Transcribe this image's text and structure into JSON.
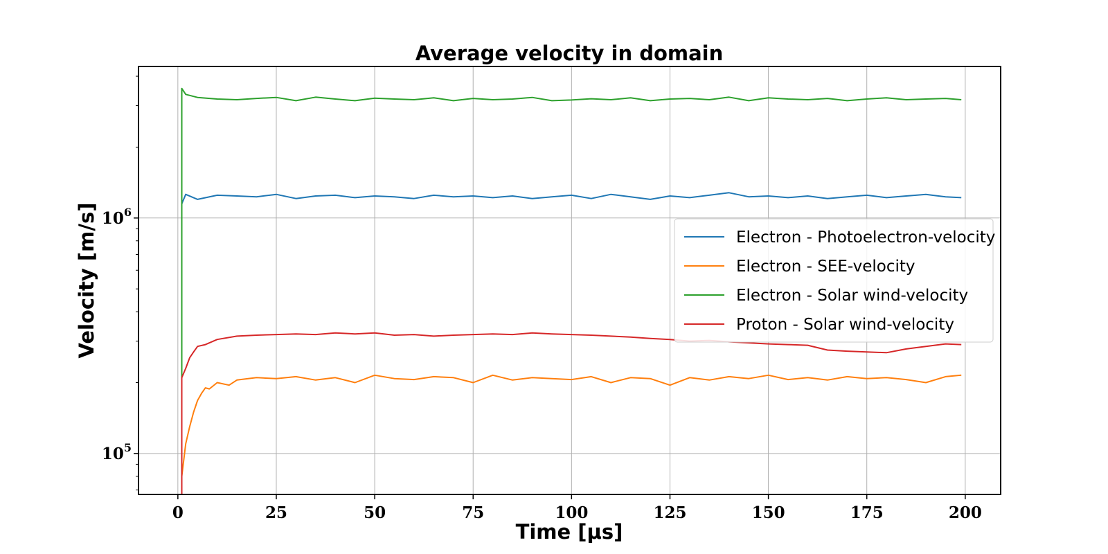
{
  "chart_data": {
    "type": "line",
    "title": "Average velocity in domain",
    "xlabel": "Time [μs]",
    "ylabel": "Velocity [m/s]",
    "xlim": [
      -10,
      209
    ],
    "ylim": [
      67000,
      4400000
    ],
    "yscale": "log",
    "grid": true,
    "legend_position": "center-right",
    "x_ticks": [
      0,
      25,
      50,
      75,
      100,
      125,
      150,
      175,
      200
    ],
    "y_ticks": [
      {
        "value": 100000,
        "base": "10",
        "exp": "5"
      },
      {
        "value": 1000000,
        "base": "10",
        "exp": "6"
      }
    ],
    "series": [
      {
        "name": "Electron - Photoelectron-velocity",
        "color": "#1f77b4",
        "x": [
          1,
          1,
          2,
          5,
          10,
          15,
          20,
          25,
          30,
          35,
          40,
          45,
          50,
          55,
          60,
          65,
          70,
          75,
          80,
          85,
          90,
          95,
          100,
          105,
          110,
          115,
          120,
          125,
          130,
          135,
          140,
          145,
          150,
          155,
          160,
          165,
          170,
          175,
          180,
          185,
          190,
          195,
          199
        ],
        "y": [
          67000,
          1150000,
          1260000,
          1200000,
          1250000,
          1240000,
          1230000,
          1260000,
          1210000,
          1240000,
          1250000,
          1220000,
          1240000,
          1230000,
          1210000,
          1250000,
          1230000,
          1240000,
          1220000,
          1240000,
          1210000,
          1230000,
          1250000,
          1210000,
          1260000,
          1230000,
          1200000,
          1240000,
          1220000,
          1250000,
          1280000,
          1230000,
          1240000,
          1220000,
          1240000,
          1210000,
          1230000,
          1250000,
          1220000,
          1240000,
          1260000,
          1230000,
          1220000
        ]
      },
      {
        "name": "Electron - SEE-velocity",
        "color": "#ff7f0e",
        "x": [
          1,
          1,
          2,
          3,
          4,
          5,
          6,
          7,
          8,
          10,
          13,
          15,
          20,
          25,
          30,
          35,
          40,
          45,
          50,
          55,
          60,
          65,
          70,
          75,
          80,
          85,
          90,
          95,
          100,
          105,
          110,
          115,
          120,
          125,
          130,
          135,
          140,
          145,
          150,
          155,
          160,
          165,
          170,
          175,
          180,
          185,
          190,
          195,
          199
        ],
        "y": [
          67000,
          80000,
          110000,
          130000,
          150000,
          168000,
          180000,
          190000,
          188000,
          200000,
          195000,
          205000,
          210000,
          208000,
          212000,
          205000,
          210000,
          200000,
          215000,
          208000,
          206000,
          212000,
          210000,
          200000,
          215000,
          205000,
          210000,
          208000,
          206000,
          212000,
          200000,
          210000,
          208000,
          195000,
          210000,
          205000,
          212000,
          208000,
          215000,
          206000,
          210000,
          205000,
          212000,
          208000,
          210000,
          206000,
          200000,
          212000,
          215000
        ]
      },
      {
        "name": "Electron - Solar wind-velocity",
        "color": "#2ca02c",
        "x": [
          1,
          1,
          2,
          5,
          10,
          15,
          20,
          25,
          30,
          35,
          40,
          45,
          50,
          55,
          60,
          65,
          70,
          75,
          80,
          85,
          90,
          95,
          100,
          105,
          110,
          115,
          120,
          125,
          130,
          135,
          140,
          145,
          150,
          155,
          160,
          165,
          170,
          175,
          180,
          185,
          190,
          195,
          199
        ],
        "y": [
          67000,
          3550000,
          3350000,
          3250000,
          3200000,
          3180000,
          3220000,
          3250000,
          3150000,
          3260000,
          3200000,
          3150000,
          3230000,
          3200000,
          3180000,
          3240000,
          3150000,
          3220000,
          3180000,
          3200000,
          3250000,
          3150000,
          3170000,
          3210000,
          3180000,
          3240000,
          3150000,
          3200000,
          3220000,
          3180000,
          3260000,
          3150000,
          3240000,
          3200000,
          3180000,
          3220000,
          3150000,
          3200000,
          3240000,
          3180000,
          3200000,
          3220000,
          3180000
        ]
      },
      {
        "name": "Proton - Solar wind-velocity",
        "color": "#d62728",
        "x": [
          1,
          1,
          2,
          3,
          4,
          5,
          7,
          10,
          15,
          20,
          25,
          30,
          35,
          40,
          45,
          50,
          55,
          60,
          65,
          70,
          75,
          80,
          85,
          90,
          95,
          100,
          105,
          110,
          115,
          120,
          125,
          130,
          135,
          140,
          145,
          150,
          155,
          160,
          165,
          170,
          175,
          180,
          185,
          190,
          195,
          199
        ],
        "y": [
          67000,
          210000,
          230000,
          255000,
          270000,
          285000,
          290000,
          305000,
          315000,
          318000,
          320000,
          322000,
          320000,
          325000,
          322000,
          325000,
          318000,
          320000,
          315000,
          318000,
          320000,
          322000,
          320000,
          325000,
          322000,
          320000,
          318000,
          315000,
          312000,
          308000,
          305000,
          300000,
          302000,
          298000,
          295000,
          292000,
          290000,
          288000,
          275000,
          272000,
          270000,
          268000,
          278000,
          285000,
          292000,
          290000
        ]
      }
    ]
  }
}
